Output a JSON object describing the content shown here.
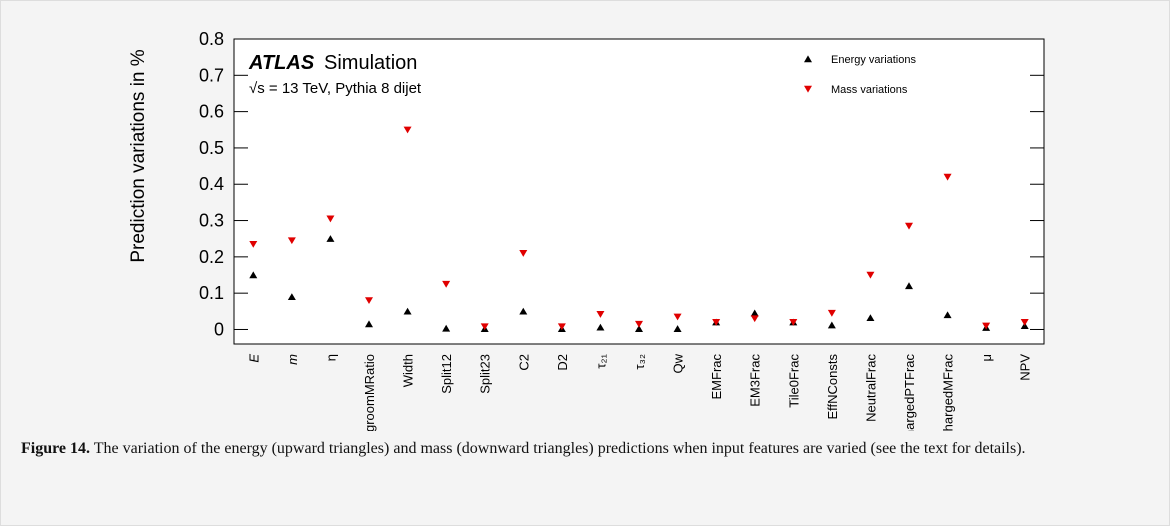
{
  "chart_data": {
    "type": "scatter",
    "title_bold": "ATLAS",
    "title": "Simulation",
    "subtitle": "√s = 13 TeV, Pythia 8 dijet",
    "y_label": "Prediction variations in %",
    "categories": [
      "E",
      "m",
      "η",
      "groomMRatio",
      "Width",
      "Split12",
      "Split23",
      "C2",
      "D2",
      "τ₂₁",
      "τ₃₂",
      "Qw",
      "EMFrac",
      "EM3Frac",
      "Tile0Frac",
      "EffNConsts",
      "NeutralFrac",
      "hargedPTFrac",
      "ChargedMFrac",
      "μ",
      "NPV"
    ],
    "series": [
      {
        "name": "Energy variations",
        "color": "#000000",
        "marker": "up",
        "values": [
          0.15,
          0.09,
          0.25,
          0.015,
          0.05,
          0.003,
          0.002,
          0.05,
          0.002,
          0.006,
          0.002,
          0.002,
          0.02,
          0.045,
          0.02,
          0.012,
          0.032,
          0.12,
          0.04,
          0.005,
          0.01
        ]
      },
      {
        "name": "Mass variations",
        "color": "#e00000",
        "marker": "down",
        "values": [
          0.235,
          0.245,
          0.305,
          0.08,
          0.55,
          0.125,
          0.008,
          0.21,
          0.008,
          0.042,
          0.015,
          0.035,
          0.02,
          0.03,
          0.02,
          0.045,
          0.15,
          0.285,
          0.42,
          0.01,
          0.02
        ]
      }
    ],
    "ylim": [
      -0.04,
      0.8
    ],
    "yticks": [
      0,
      0.1,
      0.2,
      0.3,
      0.4,
      0.5,
      0.6,
      0.7,
      0.8
    ]
  },
  "caption": {
    "label": "Figure 14.",
    "text": " The variation of the energy (upward triangles) and mass (downward triangles) predictions when input features are varied (see the text for details)."
  }
}
